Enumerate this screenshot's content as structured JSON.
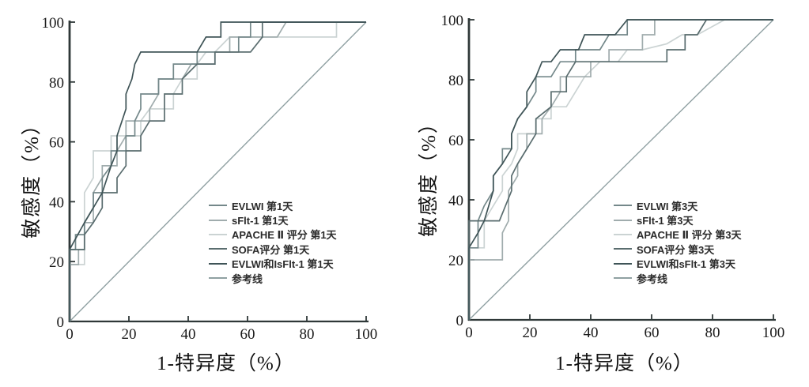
{
  "figure_colors": {
    "axis": "#2f3838",
    "tick_text": "#1a1a1a",
    "background": "#ffffff"
  },
  "chart_data": [
    {
      "type": "line",
      "subtype": "roc-step-curves",
      "title": "",
      "xlabel": "1-特异度（%）",
      "ylabel": "敏感度（%）",
      "xlim": [
        0,
        100
      ],
      "ylim": [
        0,
        100
      ],
      "xticks": [
        "0",
        "20",
        "40",
        "60",
        "80",
        "100"
      ],
      "yticks": [
        "0",
        "20",
        "40",
        "60",
        "80",
        "100"
      ],
      "grid": false,
      "legend_position": "center-right",
      "series": [
        {
          "name": "EVLWI 第1天",
          "color": "#74888a",
          "points": [
            [
              0,
              0
            ],
            [
              0,
              24
            ],
            [
              2,
              24
            ],
            [
              2,
              29
            ],
            [
              5,
              29
            ],
            [
              5,
              33
            ],
            [
              8,
              38
            ],
            [
              8,
              43
            ],
            [
              11,
              43
            ],
            [
              11,
              48
            ],
            [
              14,
              52
            ],
            [
              14,
              57
            ],
            [
              19,
              57
            ],
            [
              19,
              62
            ],
            [
              22,
              62
            ],
            [
              22,
              67
            ],
            [
              24,
              71
            ],
            [
              24,
              76
            ],
            [
              30,
              76
            ],
            [
              30,
              81
            ],
            [
              35,
              81
            ],
            [
              35,
              86
            ],
            [
              43,
              86
            ],
            [
              43,
              90
            ],
            [
              51,
              90
            ],
            [
              57,
              90
            ],
            [
              57,
              95
            ],
            [
              61,
              95
            ],
            [
              61,
              100
            ],
            [
              100,
              100
            ]
          ]
        },
        {
          "name": "sFlt-1 第1天",
          "color": "#a0acad",
          "points": [
            [
              0,
              0
            ],
            [
              0,
              19
            ],
            [
              3,
              19
            ],
            [
              3,
              24
            ],
            [
              5,
              24
            ],
            [
              5,
              33
            ],
            [
              8,
              33
            ],
            [
              8,
              43
            ],
            [
              11,
              48
            ],
            [
              11,
              52
            ],
            [
              16,
              52
            ],
            [
              16,
              57
            ],
            [
              19,
              62
            ],
            [
              19,
              67
            ],
            [
              27,
              67
            ],
            [
              27,
              71
            ],
            [
              30,
              76
            ],
            [
              30,
              81
            ],
            [
              38,
              81
            ],
            [
              41,
              86
            ],
            [
              49,
              86
            ],
            [
              49,
              90
            ],
            [
              54,
              90
            ],
            [
              54,
              95
            ],
            [
              70,
              95
            ],
            [
              73,
              100
            ],
            [
              100,
              100
            ]
          ]
        },
        {
          "name": "APACHE Ⅱ 评分 第1天",
          "color": "#cbd3d3",
          "points": [
            [
              0,
              0
            ],
            [
              0,
              19
            ],
            [
              5,
              19
            ],
            [
              5,
              43
            ],
            [
              8,
              48
            ],
            [
              8,
              57
            ],
            [
              14,
              57
            ],
            [
              14,
              62
            ],
            [
              24,
              62
            ],
            [
              24,
              67
            ],
            [
              27,
              71
            ],
            [
              35,
              71
            ],
            [
              35,
              76
            ],
            [
              38,
              81
            ],
            [
              43,
              81
            ],
            [
              43,
              86
            ],
            [
              46,
              90
            ],
            [
              49,
              90
            ],
            [
              54,
              95
            ],
            [
              90,
              95
            ],
            [
              90,
              100
            ],
            [
              100,
              100
            ]
          ]
        },
        {
          "name": "SOFA评分 第1天",
          "color": "#5a6d6f",
          "points": [
            [
              0,
              0
            ],
            [
              0,
              24
            ],
            [
              5,
              24
            ],
            [
              5,
              29
            ],
            [
              8,
              33
            ],
            [
              11,
              38
            ],
            [
              11,
              43
            ],
            [
              16,
              43
            ],
            [
              16,
              48
            ],
            [
              19,
              52
            ],
            [
              19,
              57
            ],
            [
              24,
              57
            ],
            [
              24,
              62
            ],
            [
              27,
              67
            ],
            [
              32,
              67
            ],
            [
              32,
              76
            ],
            [
              38,
              76
            ],
            [
              38,
              81
            ],
            [
              43,
              86
            ],
            [
              49,
              86
            ],
            [
              49,
              90
            ],
            [
              61,
              90
            ],
            [
              65,
              95
            ],
            [
              65,
              100
            ],
            [
              100,
              100
            ]
          ]
        },
        {
          "name": "EVLWI和IsFlt-1 第1天",
          "color": "#3f5457",
          "points": [
            [
              0,
              0
            ],
            [
              0,
              24
            ],
            [
              5,
              33
            ],
            [
              11,
              43
            ],
            [
              14,
              52
            ],
            [
              16,
              57
            ],
            [
              16,
              62
            ],
            [
              19,
              71
            ],
            [
              19,
              76
            ],
            [
              21,
              81
            ],
            [
              22,
              86
            ],
            [
              24,
              90
            ],
            [
              43,
              90
            ],
            [
              46,
              95
            ],
            [
              51,
              95
            ],
            [
              51,
              100
            ],
            [
              100,
              100
            ]
          ]
        },
        {
          "name": "参考线",
          "color": "#8fa0a2",
          "reference": true,
          "points": [
            [
              0,
              0
            ],
            [
              100,
              100
            ]
          ]
        }
      ]
    },
    {
      "type": "line",
      "subtype": "roc-step-curves",
      "title": "",
      "xlabel": "1-特异度（%）",
      "ylabel": "敏感度（%）",
      "xlim": [
        0,
        100
      ],
      "ylim": [
        0,
        100
      ],
      "xticks": [
        "0",
        "20",
        "40",
        "60",
        "80",
        "100"
      ],
      "yticks": [
        "0",
        "20",
        "40",
        "60",
        "80",
        "100"
      ],
      "grid": false,
      "legend_position": "center-right",
      "series": [
        {
          "name": "EVLWI 第3天",
          "color": "#74888a",
          "points": [
            [
              0,
              0
            ],
            [
              0,
              24
            ],
            [
              3,
              24
            ],
            [
              3,
              33
            ],
            [
              5,
              38
            ],
            [
              8,
              43
            ],
            [
              8,
              48
            ],
            [
              11,
              52
            ],
            [
              11,
              57
            ],
            [
              14,
              57
            ],
            [
              14,
              62
            ],
            [
              16,
              67
            ],
            [
              19,
              71
            ],
            [
              22,
              76
            ],
            [
              22,
              81
            ],
            [
              27,
              81
            ],
            [
              30,
              86
            ],
            [
              35,
              86
            ],
            [
              35,
              90
            ],
            [
              43,
              90
            ],
            [
              46,
              95
            ],
            [
              52,
              95
            ],
            [
              52,
              100
            ],
            [
              100,
              100
            ]
          ]
        },
        {
          "name": "sFlt-1 第3天",
          "color": "#a0acad",
          "points": [
            [
              0,
              0
            ],
            [
              0,
              20
            ],
            [
              11,
              20
            ],
            [
              11,
              29
            ],
            [
              13,
              33
            ],
            [
              13,
              43
            ],
            [
              16,
              48
            ],
            [
              16,
              52
            ],
            [
              19,
              57
            ],
            [
              19,
              62
            ],
            [
              24,
              62
            ],
            [
              24,
              67
            ],
            [
              27,
              71
            ],
            [
              30,
              76
            ],
            [
              30,
              81
            ],
            [
              40,
              81
            ],
            [
              40,
              86
            ],
            [
              46,
              86
            ],
            [
              46,
              90
            ],
            [
              57,
              90
            ],
            [
              57,
              95
            ],
            [
              61,
              95
            ],
            [
              61,
              100
            ],
            [
              100,
              100
            ]
          ]
        },
        {
          "name": "APACHE Ⅱ 评分 第3天",
          "color": "#cbd3d3",
          "points": [
            [
              0,
              0
            ],
            [
              0,
              24
            ],
            [
              5,
              24
            ],
            [
              5,
              33
            ],
            [
              8,
              38
            ],
            [
              11,
              43
            ],
            [
              11,
              48
            ],
            [
              14,
              52
            ],
            [
              16,
              57
            ],
            [
              16,
              62
            ],
            [
              22,
              62
            ],
            [
              22,
              67
            ],
            [
              27,
              67
            ],
            [
              27,
              71
            ],
            [
              32,
              71
            ],
            [
              35,
              76
            ],
            [
              38,
              81
            ],
            [
              43,
              86
            ],
            [
              49,
              86
            ],
            [
              52,
              90
            ],
            [
              57,
              90
            ],
            [
              65,
              92
            ],
            [
              70,
              95
            ],
            [
              75,
              95
            ],
            [
              84,
              100
            ],
            [
              100,
              100
            ]
          ]
        },
        {
          "name": "SOFA评分 第3天",
          "color": "#5a6d6f",
          "points": [
            [
              0,
              0
            ],
            [
              0,
              33
            ],
            [
              10,
              33
            ],
            [
              12,
              38
            ],
            [
              14,
              43
            ],
            [
              14,
              48
            ],
            [
              16,
              52
            ],
            [
              19,
              57
            ],
            [
              22,
              62
            ],
            [
              22,
              67
            ],
            [
              27,
              71
            ],
            [
              27,
              76
            ],
            [
              32,
              76
            ],
            [
              32,
              81
            ],
            [
              35,
              86
            ],
            [
              65,
              86
            ],
            [
              65,
              90
            ],
            [
              71,
              90
            ],
            [
              71,
              95
            ],
            [
              75,
              95
            ],
            [
              78,
              100
            ],
            [
              100,
              100
            ]
          ]
        },
        {
          "name": "EVLWI和sFlt-1 第3天",
          "color": "#3f5457",
          "points": [
            [
              0,
              0
            ],
            [
              0,
              24
            ],
            [
              3,
              29
            ],
            [
              5,
              33
            ],
            [
              8,
              43
            ],
            [
              8,
              48
            ],
            [
              11,
              52
            ],
            [
              14,
              57
            ],
            [
              14,
              62
            ],
            [
              16,
              67
            ],
            [
              19,
              71
            ],
            [
              19,
              76
            ],
            [
              22,
              81
            ],
            [
              24,
              86
            ],
            [
              27,
              86
            ],
            [
              30,
              90
            ],
            [
              36,
              90
            ],
            [
              38,
              95
            ],
            [
              48,
              95
            ],
            [
              52,
              100
            ],
            [
              100,
              100
            ]
          ]
        },
        {
          "name": "参考线",
          "color": "#8fa0a2",
          "reference": true,
          "points": [
            [
              0,
              0
            ],
            [
              100,
              100
            ]
          ]
        }
      ]
    }
  ]
}
